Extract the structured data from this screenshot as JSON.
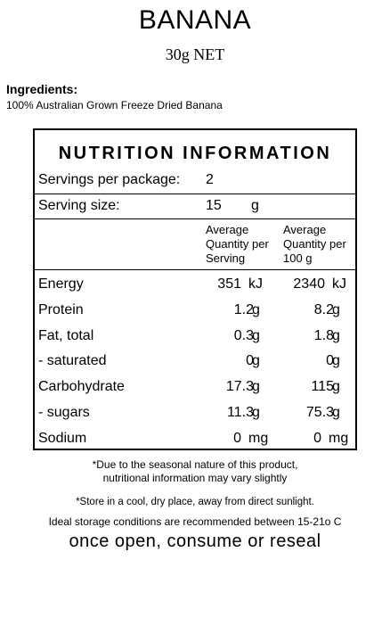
{
  "product": {
    "name": "BANANA",
    "net": "30g NET"
  },
  "ingredients": {
    "heading": "Ingredients:",
    "text": "100% Australian Grown Freeze Dried Banana"
  },
  "panel": {
    "title": "NUTRITION INFORMATION",
    "servings_label": "Servings per package:",
    "servings_value": "2",
    "serving_size_label": "Serving size:",
    "serving_size_value": "15",
    "serving_size_unit": "g",
    "col1_header": [
      "Average",
      "Quantity per",
      "Serving"
    ],
    "col2_header": [
      "Average",
      "Quantity per",
      "100 g"
    ],
    "rows": [
      {
        "label": "Energy",
        "v1": "351",
        "u1": "kJ",
        "v2": "2340",
        "u2": "kJ"
      },
      {
        "label": "Protein",
        "v1": "1.2",
        "u1": "g",
        "v2": "8.2",
        "u2": "g"
      },
      {
        "label": "Fat, total",
        "v1": "0.3",
        "u1": "g",
        "v2": "1.8",
        "u2": "g"
      },
      {
        "label": "- saturated",
        "v1": "0",
        "u1": "g",
        "v2": "0",
        "u2": "g"
      },
      {
        "label": "Carbohydrate",
        "v1": "17.3",
        "u1": "g",
        "v2": "115",
        "u2": "g"
      },
      {
        "label": "- sugars",
        "v1": "11.3",
        "u1": "g",
        "v2": "75.3",
        "u2": "g"
      },
      {
        "label": "Sodium",
        "v1": "0",
        "u1": "mg",
        "v2": "0",
        "u2": "mg"
      }
    ]
  },
  "notes": {
    "seasonal_1": "*Due to the seasonal nature of this product,",
    "seasonal_2": "nutritional information may vary slightly",
    "store": "*Store in a cool, dry place, away from direct sunlight.",
    "ideal": "Ideal storage conditions are recommended between 15-21o C",
    "reseal": "once open, consume or reseal"
  }
}
